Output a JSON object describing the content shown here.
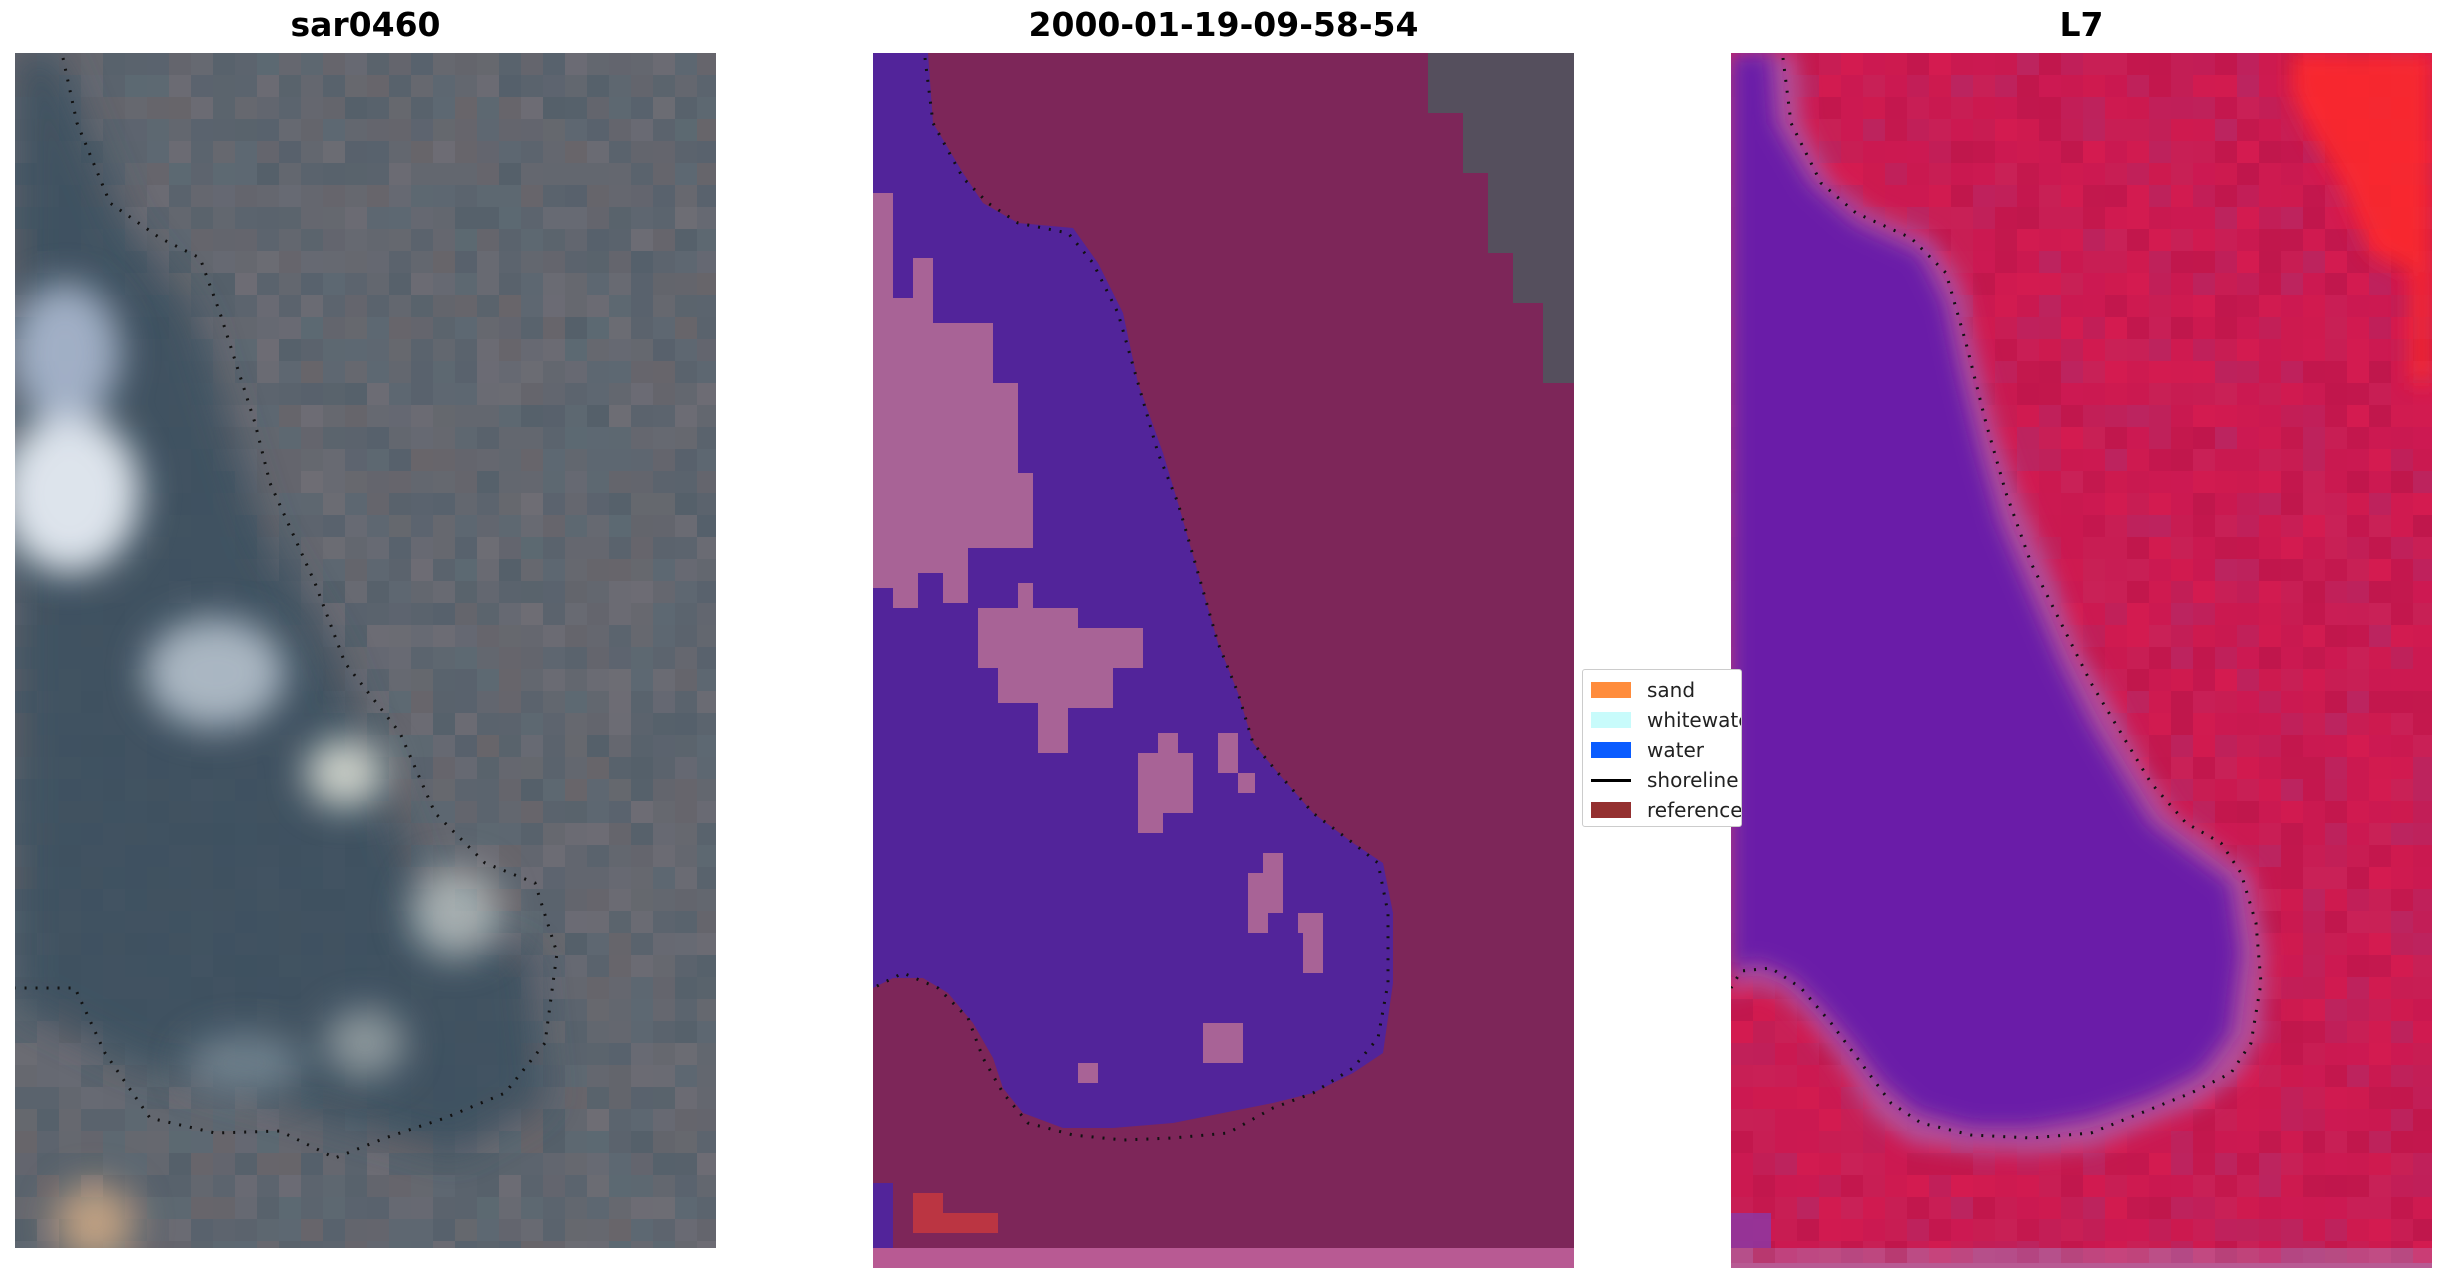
{
  "panels": [
    {
      "id": "rgb",
      "title": "sar0460"
    },
    {
      "id": "classified",
      "title": "2000-01-19-09-58-54"
    },
    {
      "id": "index",
      "title": "L7"
    }
  ],
  "legend": {
    "items": [
      {
        "label": "sand",
        "color": "#ff8c3c",
        "kind": "patch"
      },
      {
        "label": "whitewater",
        "color": "#c8fbfb",
        "kind": "patch"
      },
      {
        "label": "water",
        "color": "#0a5cff",
        "kind": "patch"
      },
      {
        "label": "shoreline",
        "color": "#000000",
        "kind": "line"
      },
      {
        "label": "reference",
        "color": "#943030",
        "kind": "patch"
      }
    ]
  },
  "colors": {
    "land_rgb": "#5f6670",
    "water_rgb": "#3a4f5e",
    "whitewater_rgb": "#c9d6e6",
    "classified_background": "#7d2659",
    "classified_water": "#52249a",
    "classified_whitewater": "#a86396",
    "index_land": "#c8194f",
    "index_water": "#6a1aa8",
    "index_transition": "#b2519a",
    "shoreline": "#111111"
  }
}
